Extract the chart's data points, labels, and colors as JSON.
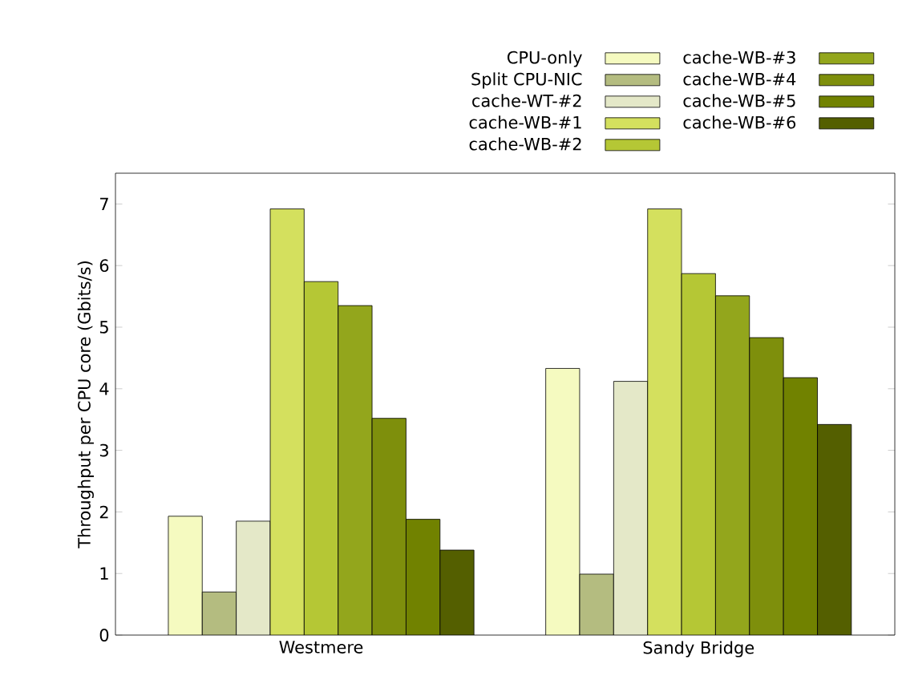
{
  "chart_data": {
    "type": "bar",
    "ylabel": "Throughput per CPU core (Gbits/s)",
    "categories": [
      "Westmere",
      "Sandy Bridge"
    ],
    "series": [
      {
        "name": "CPU-only",
        "color": "#f5fac0",
        "values": [
          1.93,
          4.33
        ]
      },
      {
        "name": "Split CPU-NIC",
        "color": "#b4bc80",
        "values": [
          0.7,
          0.99
        ]
      },
      {
        "name": "cache-WT-#2",
        "color": "#e4e8c8",
        "values": [
          1.85,
          4.12
        ]
      },
      {
        "name": "cache-WB-#1",
        "color": "#d4e05e",
        "values": [
          6.92,
          6.92
        ]
      },
      {
        "name": "cache-WB-#2",
        "color": "#b5c735",
        "values": [
          5.74,
          5.87
        ]
      },
      {
        "name": "cache-WB-#3",
        "color": "#93a61c",
        "values": [
          5.35,
          5.51
        ]
      },
      {
        "name": "cache-WB-#4",
        "color": "#7e8f0c",
        "values": [
          3.52,
          4.83
        ]
      },
      {
        "name": "cache-WB-#5",
        "color": "#718200",
        "values": [
          1.88,
          4.18
        ]
      },
      {
        "name": "cache-WB-#6",
        "color": "#545f00",
        "values": [
          1.38,
          3.42
        ]
      }
    ],
    "ylim": [
      0,
      7.5
    ],
    "yticks": [
      0,
      1,
      2,
      3,
      4,
      5,
      6,
      7
    ],
    "grid": false,
    "legend": "top"
  }
}
